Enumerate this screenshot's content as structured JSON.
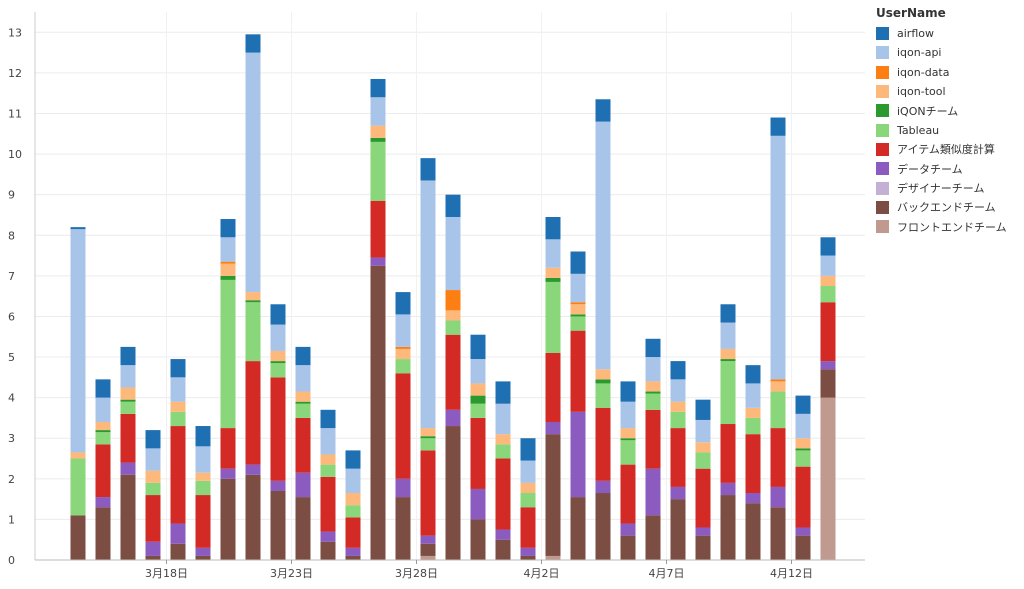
{
  "chart_data": {
    "type": "bar",
    "stacked": true,
    "ylim": [
      0,
      13.5
    ],
    "yticks": [
      0,
      1,
      2,
      3,
      4,
      5,
      6,
      7,
      8,
      9,
      10,
      11,
      12,
      13
    ],
    "x_tick_labels": [
      {
        "index": 3.5,
        "label": "3月18日"
      },
      {
        "index": 8.5,
        "label": "3月23日"
      },
      {
        "index": 13.5,
        "label": "3月28日"
      },
      {
        "index": 18.5,
        "label": "4月2日"
      },
      {
        "index": 23.5,
        "label": "4月7日"
      },
      {
        "index": 28.5,
        "label": "4月12日"
      }
    ],
    "legend_title": "UserName",
    "series": [
      {
        "name": "フロントエンドチーム",
        "color": "#c19a8f",
        "values": [
          0,
          0,
          0,
          0,
          0,
          0,
          0,
          0,
          0,
          0,
          0,
          0,
          0,
          0,
          0.1,
          0,
          0,
          0,
          0,
          0.1,
          0,
          0,
          0,
          0,
          0,
          0,
          0,
          0,
          0,
          0,
          4.0
        ]
      },
      {
        "name": "バックエンドチーム",
        "color": "#7c4d42",
        "values": [
          1.1,
          1.3,
          2.1,
          0.1,
          0.4,
          0.1,
          2.0,
          2.1,
          1.7,
          1.55,
          0.45,
          0.1,
          7.25,
          1.55,
          0.3,
          3.3,
          1.0,
          0.5,
          0.1,
          3.0,
          1.55,
          1.65,
          0.6,
          1.1,
          1.5,
          0.6,
          1.6,
          1.4,
          1.3,
          0.6,
          0.7
        ]
      },
      {
        "name": "デザイナーチーム",
        "color": "#c5b0d5",
        "values": [
          0,
          0,
          0,
          0,
          0,
          0,
          0,
          0,
          0,
          0,
          0,
          0,
          0,
          0,
          0,
          0,
          0,
          0,
          0,
          0,
          0,
          0,
          0,
          0,
          0,
          0,
          0,
          0,
          0,
          0,
          0
        ]
      },
      {
        "name": "データチーム",
        "color": "#8b5bbf",
        "values": [
          0,
          0.25,
          0.3,
          0.35,
          0.5,
          0.2,
          0.25,
          0.25,
          0.25,
          0.6,
          0.25,
          0.2,
          0.2,
          0.45,
          0.2,
          0.4,
          0.75,
          0.25,
          0.2,
          0.3,
          2.1,
          0.3,
          0.3,
          1.15,
          0.3,
          0.2,
          0.3,
          0.25,
          0.5,
          0.2,
          0.2
        ]
      },
      {
        "name": "アイテム類似度計算",
        "color": "#d42a26",
        "values": [
          0,
          1.3,
          1.2,
          1.15,
          2.4,
          1.3,
          1.0,
          2.55,
          2.55,
          1.35,
          1.35,
          0.75,
          1.4,
          2.6,
          2.1,
          1.85,
          1.75,
          1.75,
          1.0,
          1.7,
          2.0,
          1.8,
          1.45,
          1.45,
          1.45,
          1.45,
          1.45,
          1.45,
          1.45,
          1.5,
          1.45
        ]
      },
      {
        "name": "Tableau",
        "color": "#8ad67a",
        "values": [
          1.4,
          0.3,
          0.3,
          0.3,
          0.35,
          0.35,
          3.65,
          1.45,
          0.35,
          0.35,
          0.3,
          0.3,
          1.45,
          0.35,
          0.3,
          0.35,
          0.35,
          0.35,
          0.35,
          1.75,
          0.35,
          0.6,
          0.6,
          0.4,
          0.4,
          0.4,
          1.55,
          0.4,
          0.9,
          0.4,
          0.4
        ]
      },
      {
        "name": "iQONチーム",
        "color": "#2b9a2e",
        "values": [
          0,
          0.05,
          0.05,
          0,
          0,
          0,
          0.1,
          0.05,
          0.05,
          0.05,
          0,
          0,
          0.1,
          0,
          0.05,
          0,
          0.2,
          0,
          0,
          0.1,
          0.05,
          0.1,
          0.05,
          0.05,
          0,
          0,
          0.05,
          0,
          0,
          0.05,
          0
        ]
      },
      {
        "name": "iqon-tool",
        "color": "#fdb97b",
        "values": [
          0.15,
          0.2,
          0.3,
          0.3,
          0.25,
          0.2,
          0.3,
          0.2,
          0.25,
          0.25,
          0.25,
          0.3,
          0.3,
          0.25,
          0.2,
          0.25,
          0.3,
          0.25,
          0.25,
          0.25,
          0.25,
          0.25,
          0.25,
          0.25,
          0.25,
          0.25,
          0.25,
          0.25,
          0.25,
          0.25,
          0.25
        ]
      },
      {
        "name": "iqon-data",
        "color": "#fd7e13",
        "values": [
          0,
          0,
          0,
          0,
          0,
          0,
          0.05,
          0,
          0,
          0,
          0,
          0,
          0,
          0.05,
          0,
          0.5,
          0,
          0,
          0,
          0,
          0.05,
          0,
          0,
          0,
          0,
          0,
          0,
          0,
          0.05,
          0,
          0
        ]
      },
      {
        "name": "iqon-api",
        "color": "#a8c4e8",
        "values": [
          5.5,
          0.6,
          0.55,
          0.55,
          0.6,
          0.65,
          0.6,
          5.9,
          0.65,
          0.65,
          0.65,
          0.6,
          0.7,
          0.8,
          6.1,
          1.8,
          0.6,
          0.75,
          0.55,
          0.7,
          0.7,
          6.1,
          0.65,
          0.6,
          0.55,
          0.55,
          0.65,
          0.6,
          6.0,
          0.6,
          0.5
        ]
      },
      {
        "name": "airflow",
        "color": "#1f6fb3",
        "values": [
          0.05,
          0.45,
          0.45,
          0.45,
          0.45,
          0.5,
          0.45,
          0.45,
          0.5,
          0.45,
          0.45,
          0.45,
          0.45,
          0.55,
          0.55,
          0.55,
          0.6,
          0.55,
          0.55,
          0.55,
          0.55,
          0.55,
          0.5,
          0.45,
          0.45,
          0.5,
          0.45,
          0.45,
          0.45,
          0.45,
          0.45
        ]
      }
    ],
    "legend_order": [
      "airflow",
      "iqon-api",
      "iqon-data",
      "iqon-tool",
      "iQONチーム",
      "Tableau",
      "アイテム類似度計算",
      "データチーム",
      "デザイナーチーム",
      "バックエンドチーム",
      "フロントエンドチーム"
    ]
  }
}
